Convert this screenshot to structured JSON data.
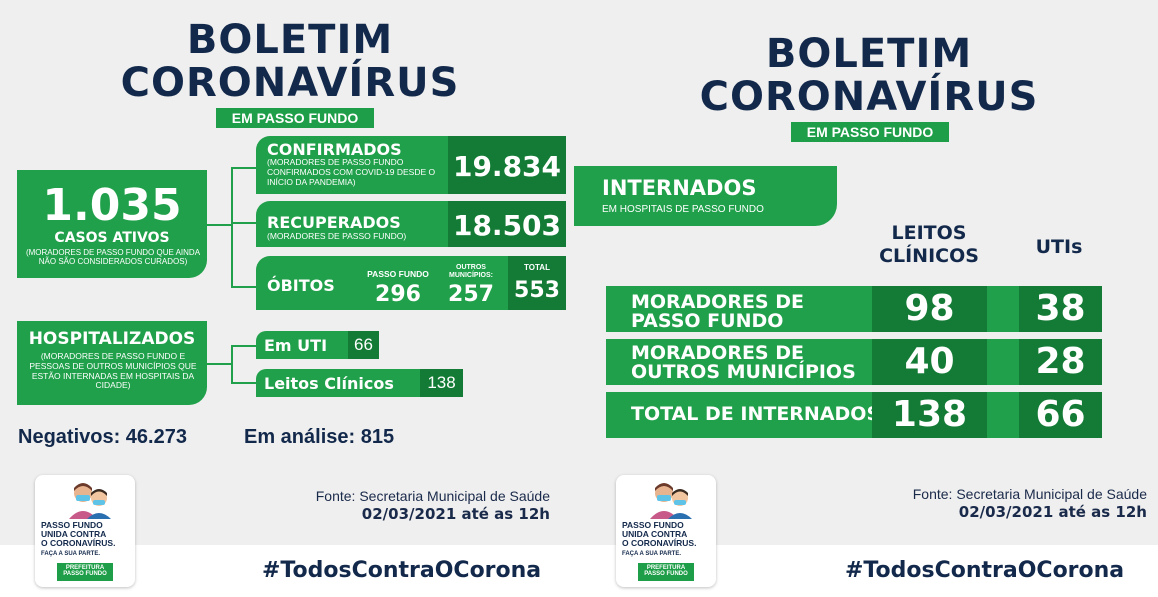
{
  "left": {
    "title_line1": "BOLETIM",
    "title_line2": "CORONAVÍRUS",
    "subtitle": "EM PASSO FUNDO",
    "ativos": {
      "value": "1.035",
      "label": "CASOS ATIVOS",
      "desc": "(MORADORES DE PASSO FUNDO QUE AINDA NÃO SÃO CONSIDERADOS CURADOS)"
    },
    "confirmados": {
      "label": "CONFIRMADOS",
      "desc": "(MORADORES DE PASSO FUNDO CONFIRMADOS COM COVID-19 DESDE O INÍCIO DA PANDEMIA)",
      "value": "19.834"
    },
    "recuperados": {
      "label": "RECUPERADOS",
      "desc": "(MORADORES DE PASSO FUNDO)",
      "value": "18.503"
    },
    "obitos": {
      "label": "ÓBITOS",
      "pf_label": "PASSO FUNDO",
      "pf_value": "296",
      "outros_label": "OUTROS MUNICÍPIOS:",
      "outros_value": "257",
      "total_label": "TOTAL",
      "total_value": "553"
    },
    "hospitalizados": {
      "label": "HOSPITALIZADOS",
      "desc": "(MORADORES DE PASSO FUNDO E PESSOAS DE OUTROS MUNICÍPIOS QUE ESTÃO INTERNADAS EM HOSPITAIS DA CIDADE)",
      "uti_label": "Em UTI",
      "uti_value": "66",
      "leitos_label": "Leitos Clínicos",
      "leitos_value": "138"
    },
    "negativos": "Negativos: 46.273",
    "analise": "Em análise: 815",
    "fonte": "Fonte: Secretaria Municipal de Saúde",
    "date": "02/03/2021 até as 12h",
    "hashtag": "#TodosContraOCorona",
    "logo": {
      "line1": "PASSO FUNDO",
      "line2": "UNIDA CONTRA",
      "line3": "O CORONAVÍRUS.",
      "sub": "FAÇA A SUA PARTE.",
      "bar1": "PREFEITURA",
      "bar2": "PASSO FUNDO"
    }
  },
  "right": {
    "title_line1": "BOLETIM",
    "title_line2": "CORONAVÍRUS",
    "subtitle": "EM PASSO FUNDO",
    "internados": "INTERNADOS",
    "internados_desc": "EM HOSPITAIS DE PASSO FUNDO",
    "col_leitos_1": "LEITOS",
    "col_leitos_2": "CLÍNICOS",
    "col_utis": "UTIs",
    "rows": [
      {
        "label1": "MORADORES DE",
        "label2": "PASSO FUNDO",
        "leitos": "98",
        "utis": "38"
      },
      {
        "label1": "MORADORES DE",
        "label2": "OUTROS MUNICÍPIOS",
        "leitos": "40",
        "utis": "28"
      },
      {
        "label1": "TOTAL DE INTERNADOS",
        "label2": "",
        "leitos": "138",
        "utis": "66"
      }
    ],
    "fonte": "Fonte: Secretaria Municipal de Saúde",
    "date": "02/03/2021 até as 12h",
    "hashtag": "#TodosContraOCorona",
    "logo": {
      "line1": "PASSO FUNDO",
      "line2": "UNIDA CONTRA",
      "line3": "O CORONAVÍRUS.",
      "sub": "FAÇA A SUA PARTE.",
      "bar1": "PREFEITURA",
      "bar2": "PASSO FUNDO"
    }
  },
  "colors": {
    "green": "#20a04a",
    "dark_green": "#137b35",
    "navy": "#13294b"
  }
}
